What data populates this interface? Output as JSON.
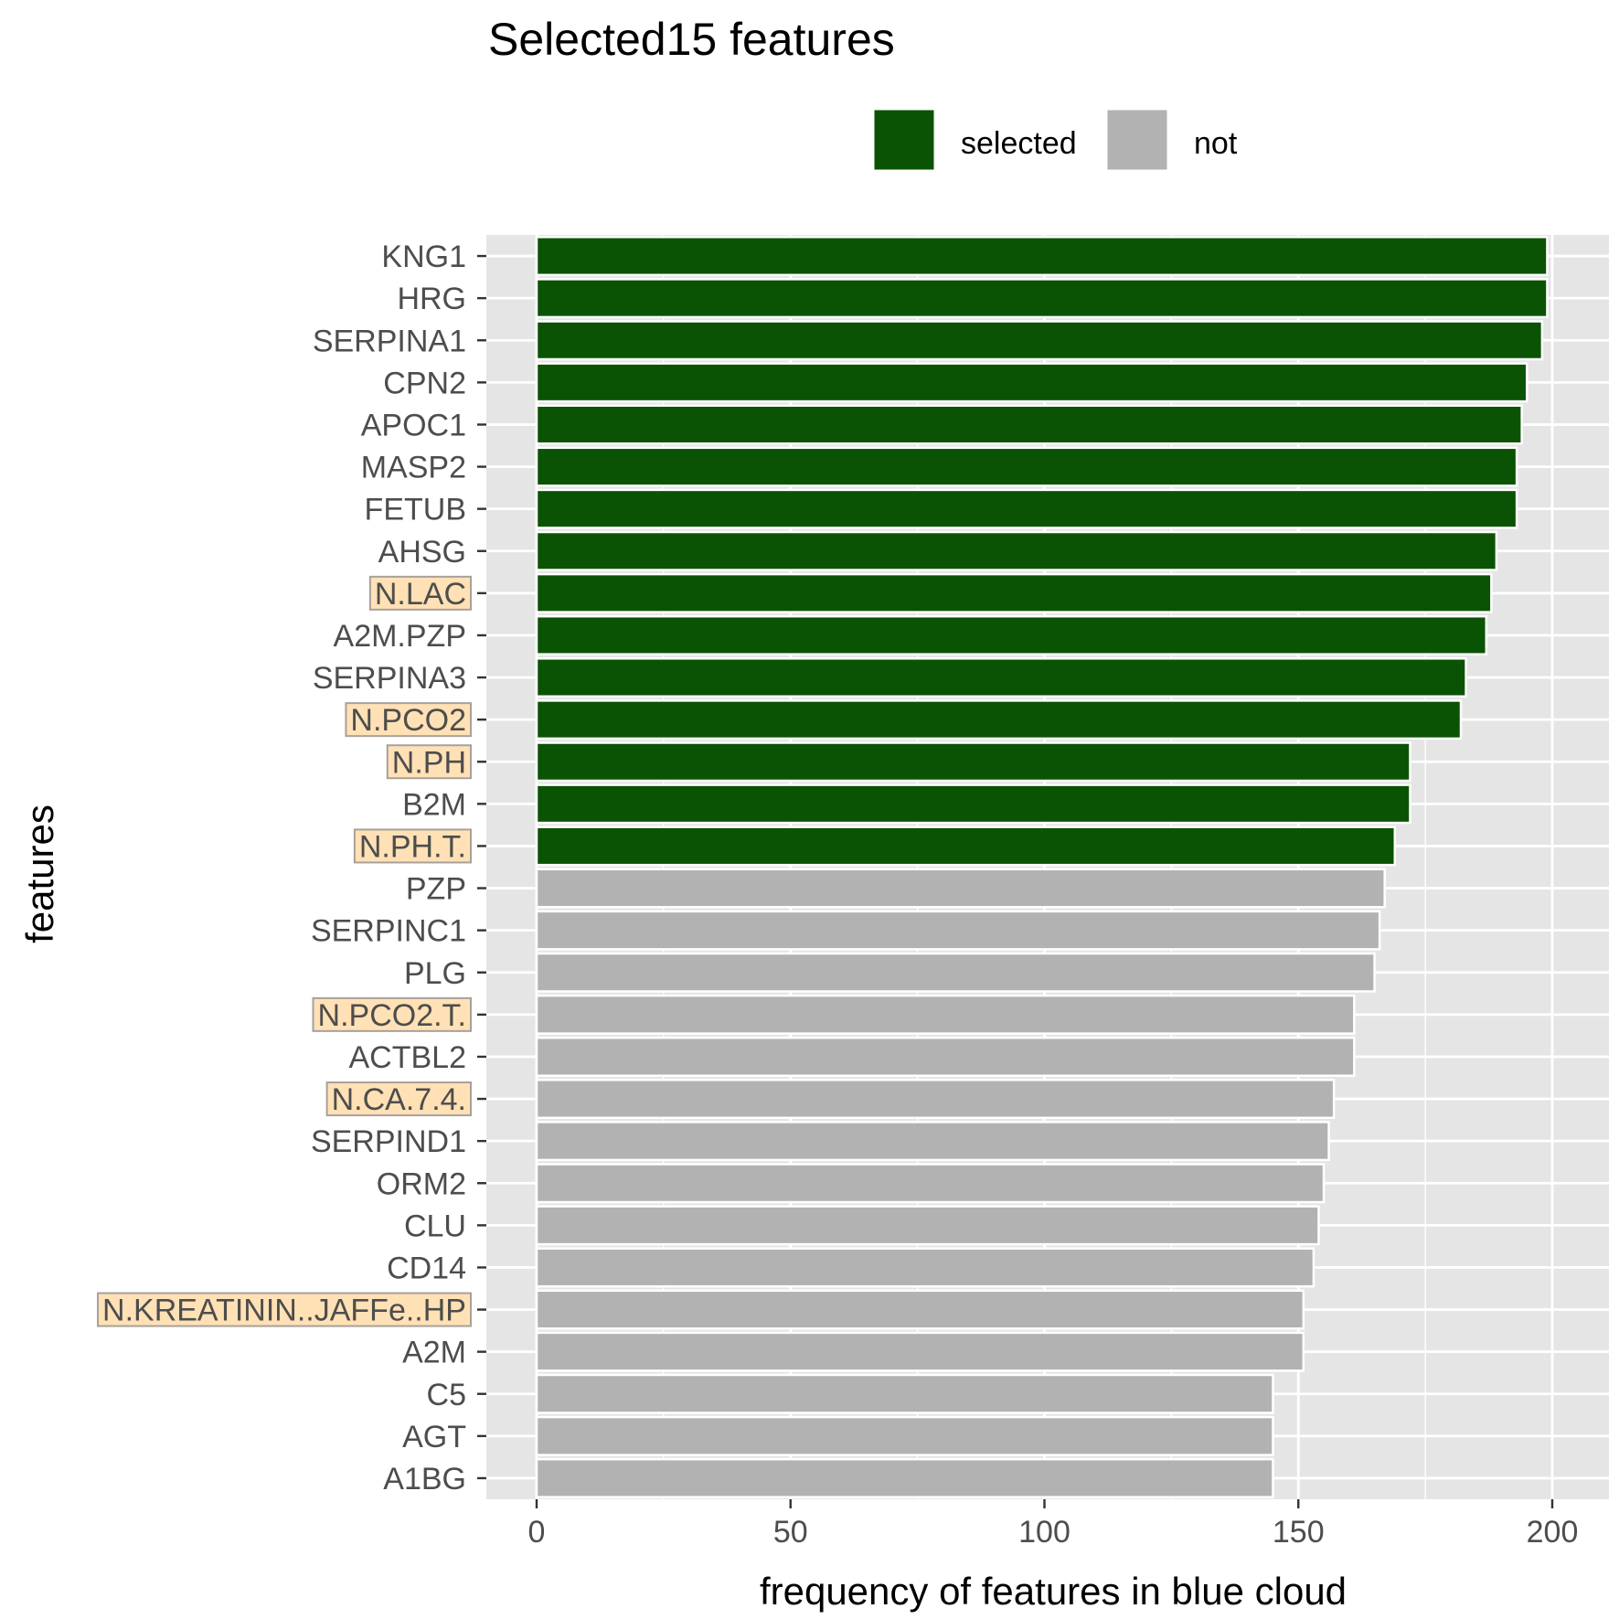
{
  "chart_data": {
    "type": "bar",
    "orientation": "horizontal",
    "title": "Selected15 features",
    "xlabel": "frequency of features in blue cloud",
    "ylabel": "features",
    "xlim": [
      -10,
      210
    ],
    "xticks": [
      0,
      50,
      100,
      150,
      200
    ],
    "grid": true,
    "legend_position": "top",
    "legend": [
      {
        "label": "selected",
        "color": "#0b5304"
      },
      {
        "label": "not",
        "color": "#b2b2b2"
      }
    ],
    "categories": [
      "KNG1",
      "HRG",
      "SERPINA1",
      "CPN2",
      "APOC1",
      "MASP2",
      "FETUB",
      "AHSG",
      "N.LAC",
      "A2M.PZP",
      "SERPINA3",
      "N.PCO2",
      "N.PH",
      "B2M",
      "N.PH.T.",
      "PZP",
      "SERPINC1",
      "PLG",
      "N.PCO2.T.",
      "ACTBL2",
      "N.CA.7.4.",
      "SERPIND1",
      "ORM2",
      "CLU",
      "CD14",
      "N.KREATININ..JAFFe..HP",
      "A2M",
      "C5",
      "AGT",
      "A1BG"
    ],
    "values": [
      199,
      199,
      198,
      195,
      194,
      193,
      193,
      189,
      188,
      187,
      183,
      182,
      172,
      172,
      169,
      167,
      166,
      165,
      161,
      161,
      157,
      156,
      155,
      154,
      153,
      151,
      151,
      145,
      145,
      145
    ],
    "groups": [
      "selected",
      "selected",
      "selected",
      "selected",
      "selected",
      "selected",
      "selected",
      "selected",
      "selected",
      "selected",
      "selected",
      "selected",
      "selected",
      "selected",
      "selected",
      "not",
      "not",
      "not",
      "not",
      "not",
      "not",
      "not",
      "not",
      "not",
      "not",
      "not",
      "not",
      "not",
      "not",
      "not"
    ],
    "highlighted_labels": [
      "N.LAC",
      "N.PCO2",
      "N.PH",
      "N.PH.T.",
      "N.PCO2.T.",
      "N.CA.7.4.",
      "N.KREATININ..JAFFe..HP"
    ]
  },
  "colors": {
    "panel": "#e5e5e5",
    "grid": "#ffffff",
    "selected": "#0b5304",
    "not": "#b2b2b2",
    "highlight_fill": "#ffdca8",
    "highlight_stroke": "#a8a09a"
  }
}
